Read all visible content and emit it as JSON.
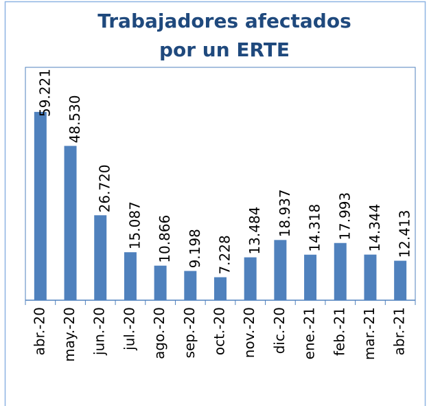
{
  "chart_data": {
    "type": "bar",
    "title": [
      "Trabajadores afectados",
      "por un ERTE"
    ],
    "categories": [
      "abr.-20",
      "may.-20",
      "jun.-20",
      "jul.-20",
      "ago.-20",
      "sep.-20",
      "oct.-20",
      "nov.-20",
      "dic.-20",
      "ene.-21",
      "feb.-21",
      "mar.-21",
      "abr.-21"
    ],
    "values": [
      59221,
      48530,
      26720,
      15087,
      10866,
      9198,
      7228,
      13484,
      18937,
      14318,
      17993,
      14344,
      12413
    ],
    "value_labels": [
      "59.221",
      "48.530",
      "26.720",
      "15.087",
      "10.866",
      "9.198",
      "7.228",
      "13.484",
      "18.937",
      "14.318",
      "17.993",
      "14.344",
      "12.413"
    ],
    "color": "#4f81bd",
    "ylim": [
      0,
      70000
    ]
  }
}
